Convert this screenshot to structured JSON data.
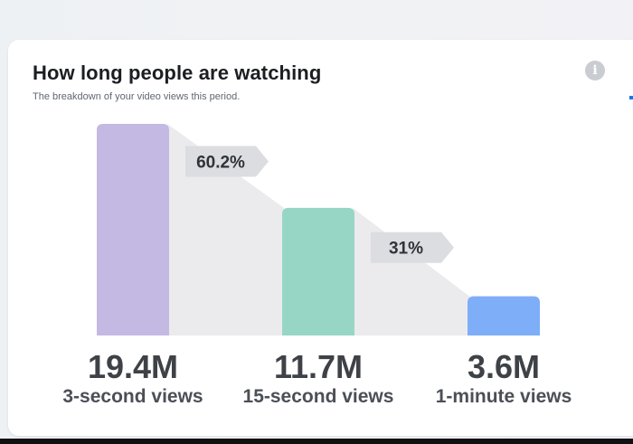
{
  "card": {
    "title": "How long people are watching",
    "subtitle": "The breakdown of your video views this period.",
    "info_icon": "info-icon"
  },
  "chart_data": {
    "type": "bar",
    "title": "How long people are watching",
    "subtitle": "The breakdown of your video views this period.",
    "categories": [
      "3-second views",
      "15-second views",
      "1-minute views"
    ],
    "values": [
      19.4,
      11.7,
      3.6
    ],
    "value_unit": "M",
    "value_labels": [
      "19.4M",
      "11.7M",
      "3.6M"
    ],
    "retention_labels": [
      "60.2%",
      "31%"
    ],
    "colors": [
      "#c4b9e2",
      "#97d6c5",
      "#7eaef8"
    ],
    "funnel_color": "#ebebee",
    "retention_badge_color": "#dcdde0",
    "ylim": [
      0,
      19.4
    ],
    "grid": false,
    "legend": "none"
  }
}
